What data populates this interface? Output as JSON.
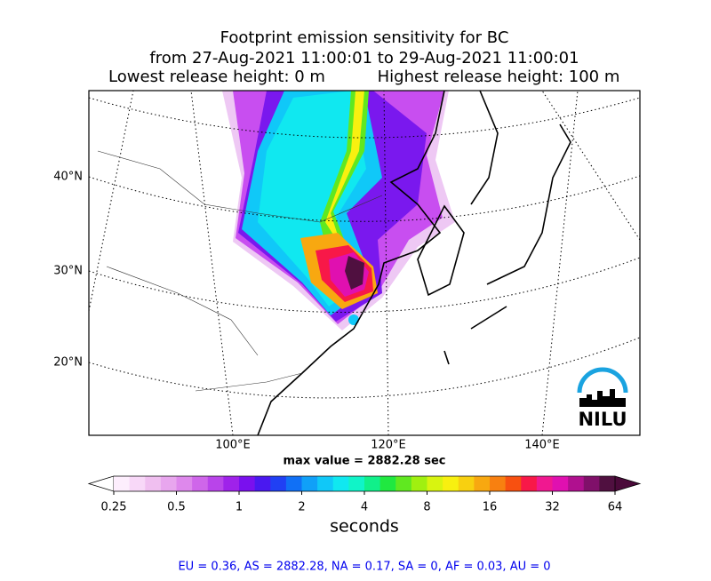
{
  "title": {
    "line1": "Footprint emission sensitivity for BC",
    "line2": "from 27-Aug-2021 11:00:01 to 29-Aug-2021 11:00:01",
    "line3_left": "Lowest release height: 0 m",
    "line3_right": "Highest release height: 100 m"
  },
  "map": {
    "lat_labels": [
      "40°N",
      "30°N",
      "20°N"
    ],
    "lon_labels": [
      "100°E",
      "120°E",
      "140°E"
    ],
    "logo": "NILU",
    "max_value": "max value = 2882.28 sec"
  },
  "colorbar": {
    "ticks": [
      0.25,
      0.5,
      1,
      2,
      4,
      8,
      16,
      32,
      64
    ],
    "label": "seconds",
    "under_color": "#ffffff",
    "over_color": "#4b0a3a",
    "colors": [
      "#fdeefd",
      "#f8d8f8",
      "#f0bff0",
      "#e8a6ee",
      "#de88ec",
      "#cf66ea",
      "#b944ea",
      "#9f22ea",
      "#7a10ee",
      "#4a18f0",
      "#2040f4",
      "#1070f6",
      "#10a0f8",
      "#10c8f8",
      "#10e8f0",
      "#10f4c8",
      "#10f08a",
      "#20e840",
      "#60e820",
      "#a0f010",
      "#d8f410",
      "#f8f010",
      "#f8d010",
      "#f8a810",
      "#f88010",
      "#f85010",
      "#f81848",
      "#f01890",
      "#e010b0",
      "#b0108f",
      "#80106a",
      "#501040"
    ]
  },
  "footer": "EU = 0.36,  AS = 2882.28,  NA = 0.17,  SA = 0,  AF = 0.03,  AU = 0"
}
